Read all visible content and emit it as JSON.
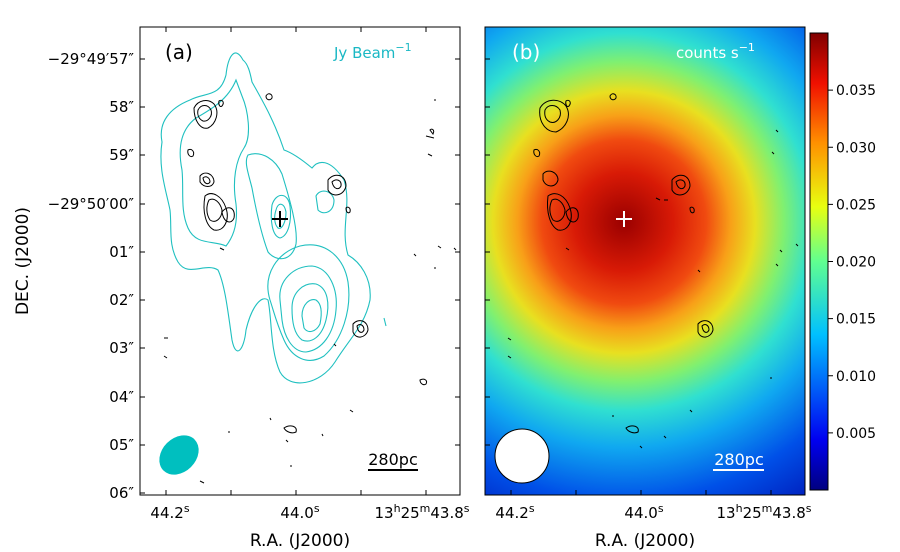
{
  "chart_data": [
    {
      "type": "contour",
      "panel_label": "(a)",
      "unit_label": "Jy Beam",
      "unit_exponent": "−1",
      "scalebar_label": "280pc",
      "xlabel": "R.A. (J2000)",
      "ylabel": "DEC. (J2000)",
      "x_ticks": [
        "44.2",
        "44.0",
        "13h25m43.8"
      ],
      "y_ticks": [
        "−29°49′57″",
        "58″",
        "59″",
        "−29°50′00″",
        "01″",
        "02″",
        "03″",
        "04″",
        "05″",
        "06″"
      ],
      "colors": {
        "contour_cyan": "#20c0c0",
        "contour_black": "#000000",
        "label_cyan": "#1ab8c4"
      }
    },
    {
      "type": "heatmap",
      "panel_label": "(b)",
      "unit_label": "counts s",
      "unit_exponent": "−1",
      "scalebar_label": "280pc",
      "xlabel": "R.A. (J2000)",
      "x_ticks": [
        "44.2",
        "44.0",
        "13h25m43.8"
      ],
      "colorbar": {
        "range": [
          0.0,
          0.04
        ],
        "ticks": [
          0.005,
          0.01,
          0.015,
          0.02,
          0.025,
          0.03,
          0.035
        ],
        "tick_labels": [
          "0.005",
          "0.010",
          "0.015",
          "0.020",
          "0.025",
          "0.030",
          "0.035"
        ],
        "colormap": "jet"
      }
    }
  ]
}
